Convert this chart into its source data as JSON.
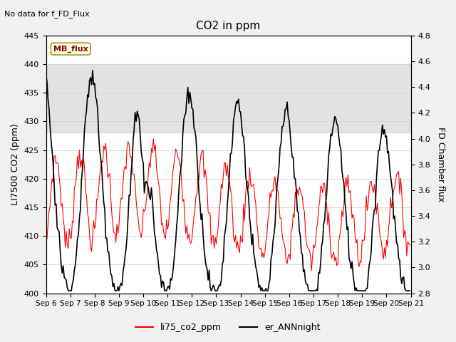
{
  "title": "CO2 in ppm",
  "top_left_text": "No data for f_FD_Flux",
  "ylabel_left": "LI7500 CO2 (ppm)",
  "ylabel_right": "FD Chamber flux",
  "ylim_left": [
    400,
    445
  ],
  "ylim_right": [
    2.8,
    4.8
  ],
  "yticks_left": [
    400,
    405,
    410,
    415,
    420,
    425,
    430,
    435,
    440,
    445
  ],
  "yticks_right": [
    2.8,
    3.0,
    3.2,
    3.4,
    3.6,
    3.8,
    4.0,
    4.2,
    4.4,
    4.6,
    4.8
  ],
  "xtick_labels": [
    "Sep 6",
    "Sep 7",
    "Sep 8",
    "Sep 9",
    "Sep 10",
    "Sep 11",
    "Sep 12",
    "Sep 13",
    "Sep 14",
    "Sep 15",
    "Sep 16",
    "Sep 17",
    "Sep 18",
    "Sep 19",
    "Sep 20",
    "Sep 21"
  ],
  "legend_labels": [
    "li75_co2_ppm",
    "er_ANNnight"
  ],
  "legend_colors": [
    "red",
    "black"
  ],
  "line1_color": "red",
  "line2_color": "black",
  "line1_lw": 0.8,
  "line2_lw": 1.2,
  "shaded_region": [
    428,
    440
  ],
  "background_color": "#f0f0f0",
  "plot_bg_color": "white",
  "figsize": [
    6.4,
    4.8
  ],
  "dpi": 100
}
